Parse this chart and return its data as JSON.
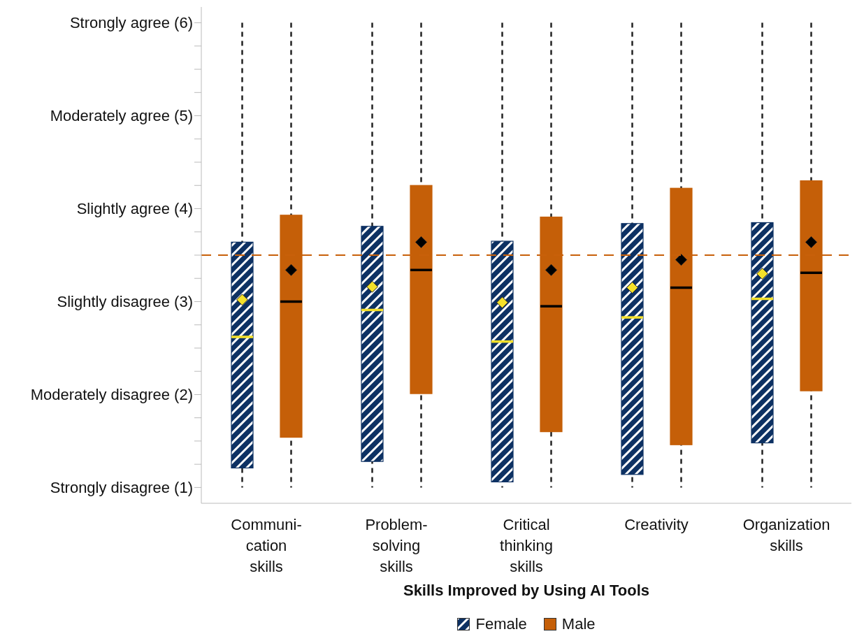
{
  "chart_data": {
    "type": "box",
    "xlabel": "Skills Improved by Using AI Tools",
    "categories": [
      "Communi-\ncation\nskills",
      "Problem-\nsolving\nskills",
      "Critical\nthinking\nskills",
      "Creativity",
      "Organization\nskills"
    ],
    "series": [
      {
        "name": "Female",
        "color": "#0d3163",
        "boxes": [
          {
            "low": 1,
            "q1": 1.21,
            "median": 2.62,
            "q3": 3.64,
            "high": 6,
            "mean": 3.02
          },
          {
            "low": 1,
            "q1": 1.28,
            "median": 2.91,
            "q3": 3.81,
            "high": 6,
            "mean": 3.16
          },
          {
            "low": 1,
            "q1": 1.06,
            "median": 2.57,
            "q3": 3.65,
            "high": 6,
            "mean": 2.99
          },
          {
            "low": 1,
            "q1": 1.14,
            "median": 2.83,
            "q3": 3.84,
            "high": 6,
            "mean": 3.15
          },
          {
            "low": 1,
            "q1": 1.48,
            "median": 3.03,
            "q3": 3.85,
            "high": 6,
            "mean": 3.3
          }
        ]
      },
      {
        "name": "Male",
        "color": "#c55f08",
        "boxes": [
          {
            "low": 1,
            "q1": 1.54,
            "median": 3.0,
            "q3": 3.93,
            "high": 6,
            "mean": 3.34
          },
          {
            "low": 1,
            "q1": 2.01,
            "median": 3.34,
            "q3": 4.25,
            "high": 6,
            "mean": 3.64
          },
          {
            "low": 1,
            "q1": 1.6,
            "median": 2.95,
            "q3": 3.91,
            "high": 6,
            "mean": 3.34
          },
          {
            "low": 1,
            "q1": 1.46,
            "median": 3.15,
            "q3": 4.22,
            "high": 6,
            "mean": 3.45
          },
          {
            "low": 1,
            "q1": 2.04,
            "median": 3.31,
            "q3": 4.3,
            "high": 6,
            "mean": 3.64
          }
        ]
      }
    ],
    "ylim": [
      0.83,
      6.17
    ],
    "yticks": [
      {
        "value": 1,
        "label": "Strongly disagree (1)"
      },
      {
        "value": 1.25,
        "label": null
      },
      {
        "value": 1.5,
        "label": null
      },
      {
        "value": 1.75,
        "label": null
      },
      {
        "value": 2,
        "label": "Moderately disagree (2)"
      },
      {
        "value": 2.25,
        "label": null
      },
      {
        "value": 2.5,
        "label": null
      },
      {
        "value": 2.75,
        "label": null
      },
      {
        "value": 3,
        "label": "Slightly disagree (3)"
      },
      {
        "value": 3.25,
        "label": null
      },
      {
        "value": 3.5,
        "label": null
      },
      {
        "value": 3.75,
        "label": null
      },
      {
        "value": 4,
        "label": "Slightly agree (4)"
      },
      {
        "value": 4.25,
        "label": null
      },
      {
        "value": 4.5,
        "label": null
      },
      {
        "value": 4.75,
        "label": null
      },
      {
        "value": 5,
        "label": "Moderately agree (5)"
      },
      {
        "value": 5.25,
        "label": null
      },
      {
        "value": 5.5,
        "label": null
      },
      {
        "value": 5.75,
        "label": null
      },
      {
        "value": 6,
        "label": "Strongly agree (6)"
      }
    ],
    "ref_lines": [
      {
        "axis": "y",
        "value": 3.5,
        "color": "#c8600a",
        "line_style": "dashed"
      }
    ],
    "grid": false,
    "legend": "bottom",
    "marker": "diamond"
  }
}
